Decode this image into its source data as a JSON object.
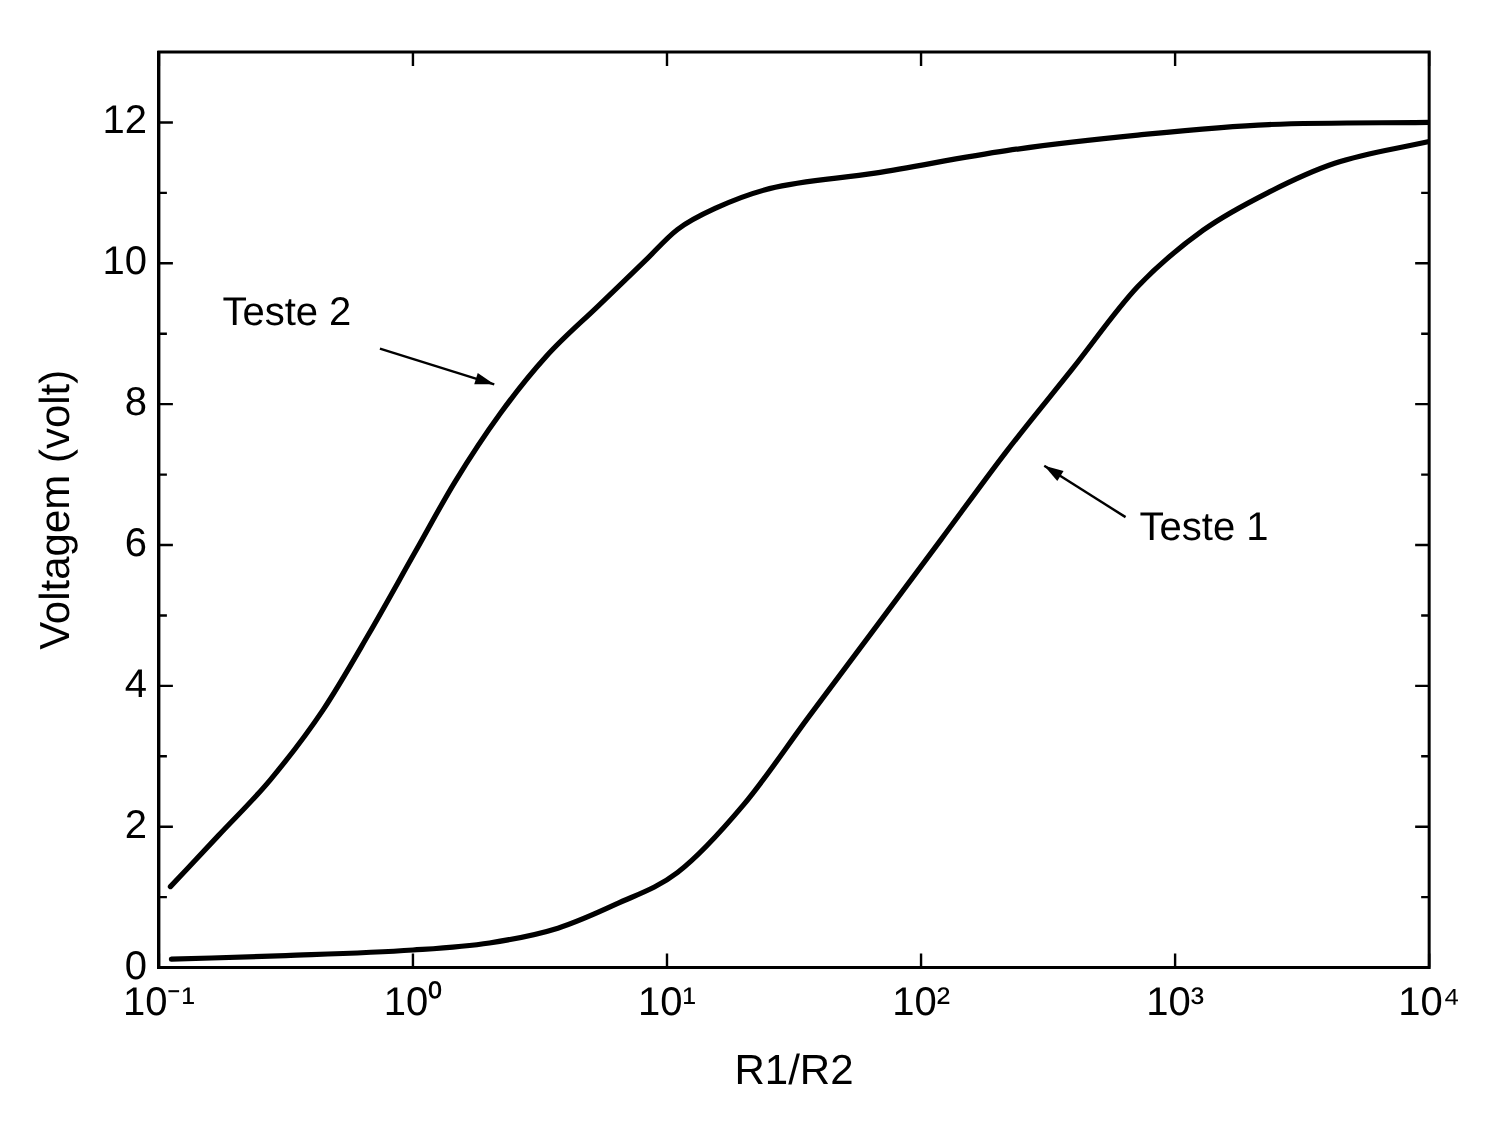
{
  "chart_data": {
    "type": "line",
    "xlabel": "R1/R2",
    "ylabel": "Voltagem (volt)",
    "log": "x",
    "xlim": [
      0.1,
      10000
    ],
    "ylim": [
      0,
      13
    ],
    "xticks": [
      {
        "value": 0.1,
        "label": "10⁻¹"
      },
      {
        "value": 1,
        "label": "10⁰"
      },
      {
        "value": 10,
        "label": "10¹"
      },
      {
        "value": 100,
        "label": "10²"
      },
      {
        "value": 1000,
        "label": "10³"
      },
      {
        "value": 10000,
        "label": "10⁴"
      }
    ],
    "yticks": [
      0,
      {
        "value": 1,
        "label": null
      },
      2,
      {
        "value": 3,
        "label": null
      },
      4,
      {
        "value": 5,
        "label": null
      },
      6,
      {
        "value": 7,
        "label": null
      },
      8,
      {
        "value": 9,
        "label": null
      },
      10,
      {
        "value": 11,
        "label": null
      },
      12
    ],
    "grid": false,
    "legend": false,
    "marker": "none",
    "line_style": "solid",
    "series": [
      {
        "color": "#000000",
        "x": [
          0.112,
          0.316,
          1,
          2,
          3.72,
          6.3,
          11,
          20,
          36.3,
          65.9,
          120,
          217,
          394,
          713,
          1290,
          2340,
          4250,
          10000
        ],
        "values": [
          0.12,
          0.17,
          0.25,
          0.35,
          0.56,
          0.9,
          1.35,
          2.31,
          3.57,
          4.82,
          6.08,
          7.33,
          8.5,
          9.67,
          10.47,
          11.01,
          11.42,
          11.73
        ]
      },
      {
        "color": "#000000",
        "x": [
          0.111,
          0.171,
          0.275,
          0.443,
          0.671,
          1.02,
          1.46,
          2.21,
          3.35,
          5.38,
          8.17,
          11,
          15.7,
          25.3,
          65.9,
          217,
          713,
          2340,
          10000
        ],
        "values": [
          1.15,
          1.87,
          2.67,
          3.66,
          4.74,
          5.9,
          6.89,
          7.87,
          8.68,
          9.4,
          10.03,
          10.48,
          10.79,
          11.06,
          11.28,
          11.6,
          11.82,
          11.97,
          12.0
        ]
      }
    ],
    "annotations": [
      "Teste 2",
      "Teste 1"
    ]
  }
}
